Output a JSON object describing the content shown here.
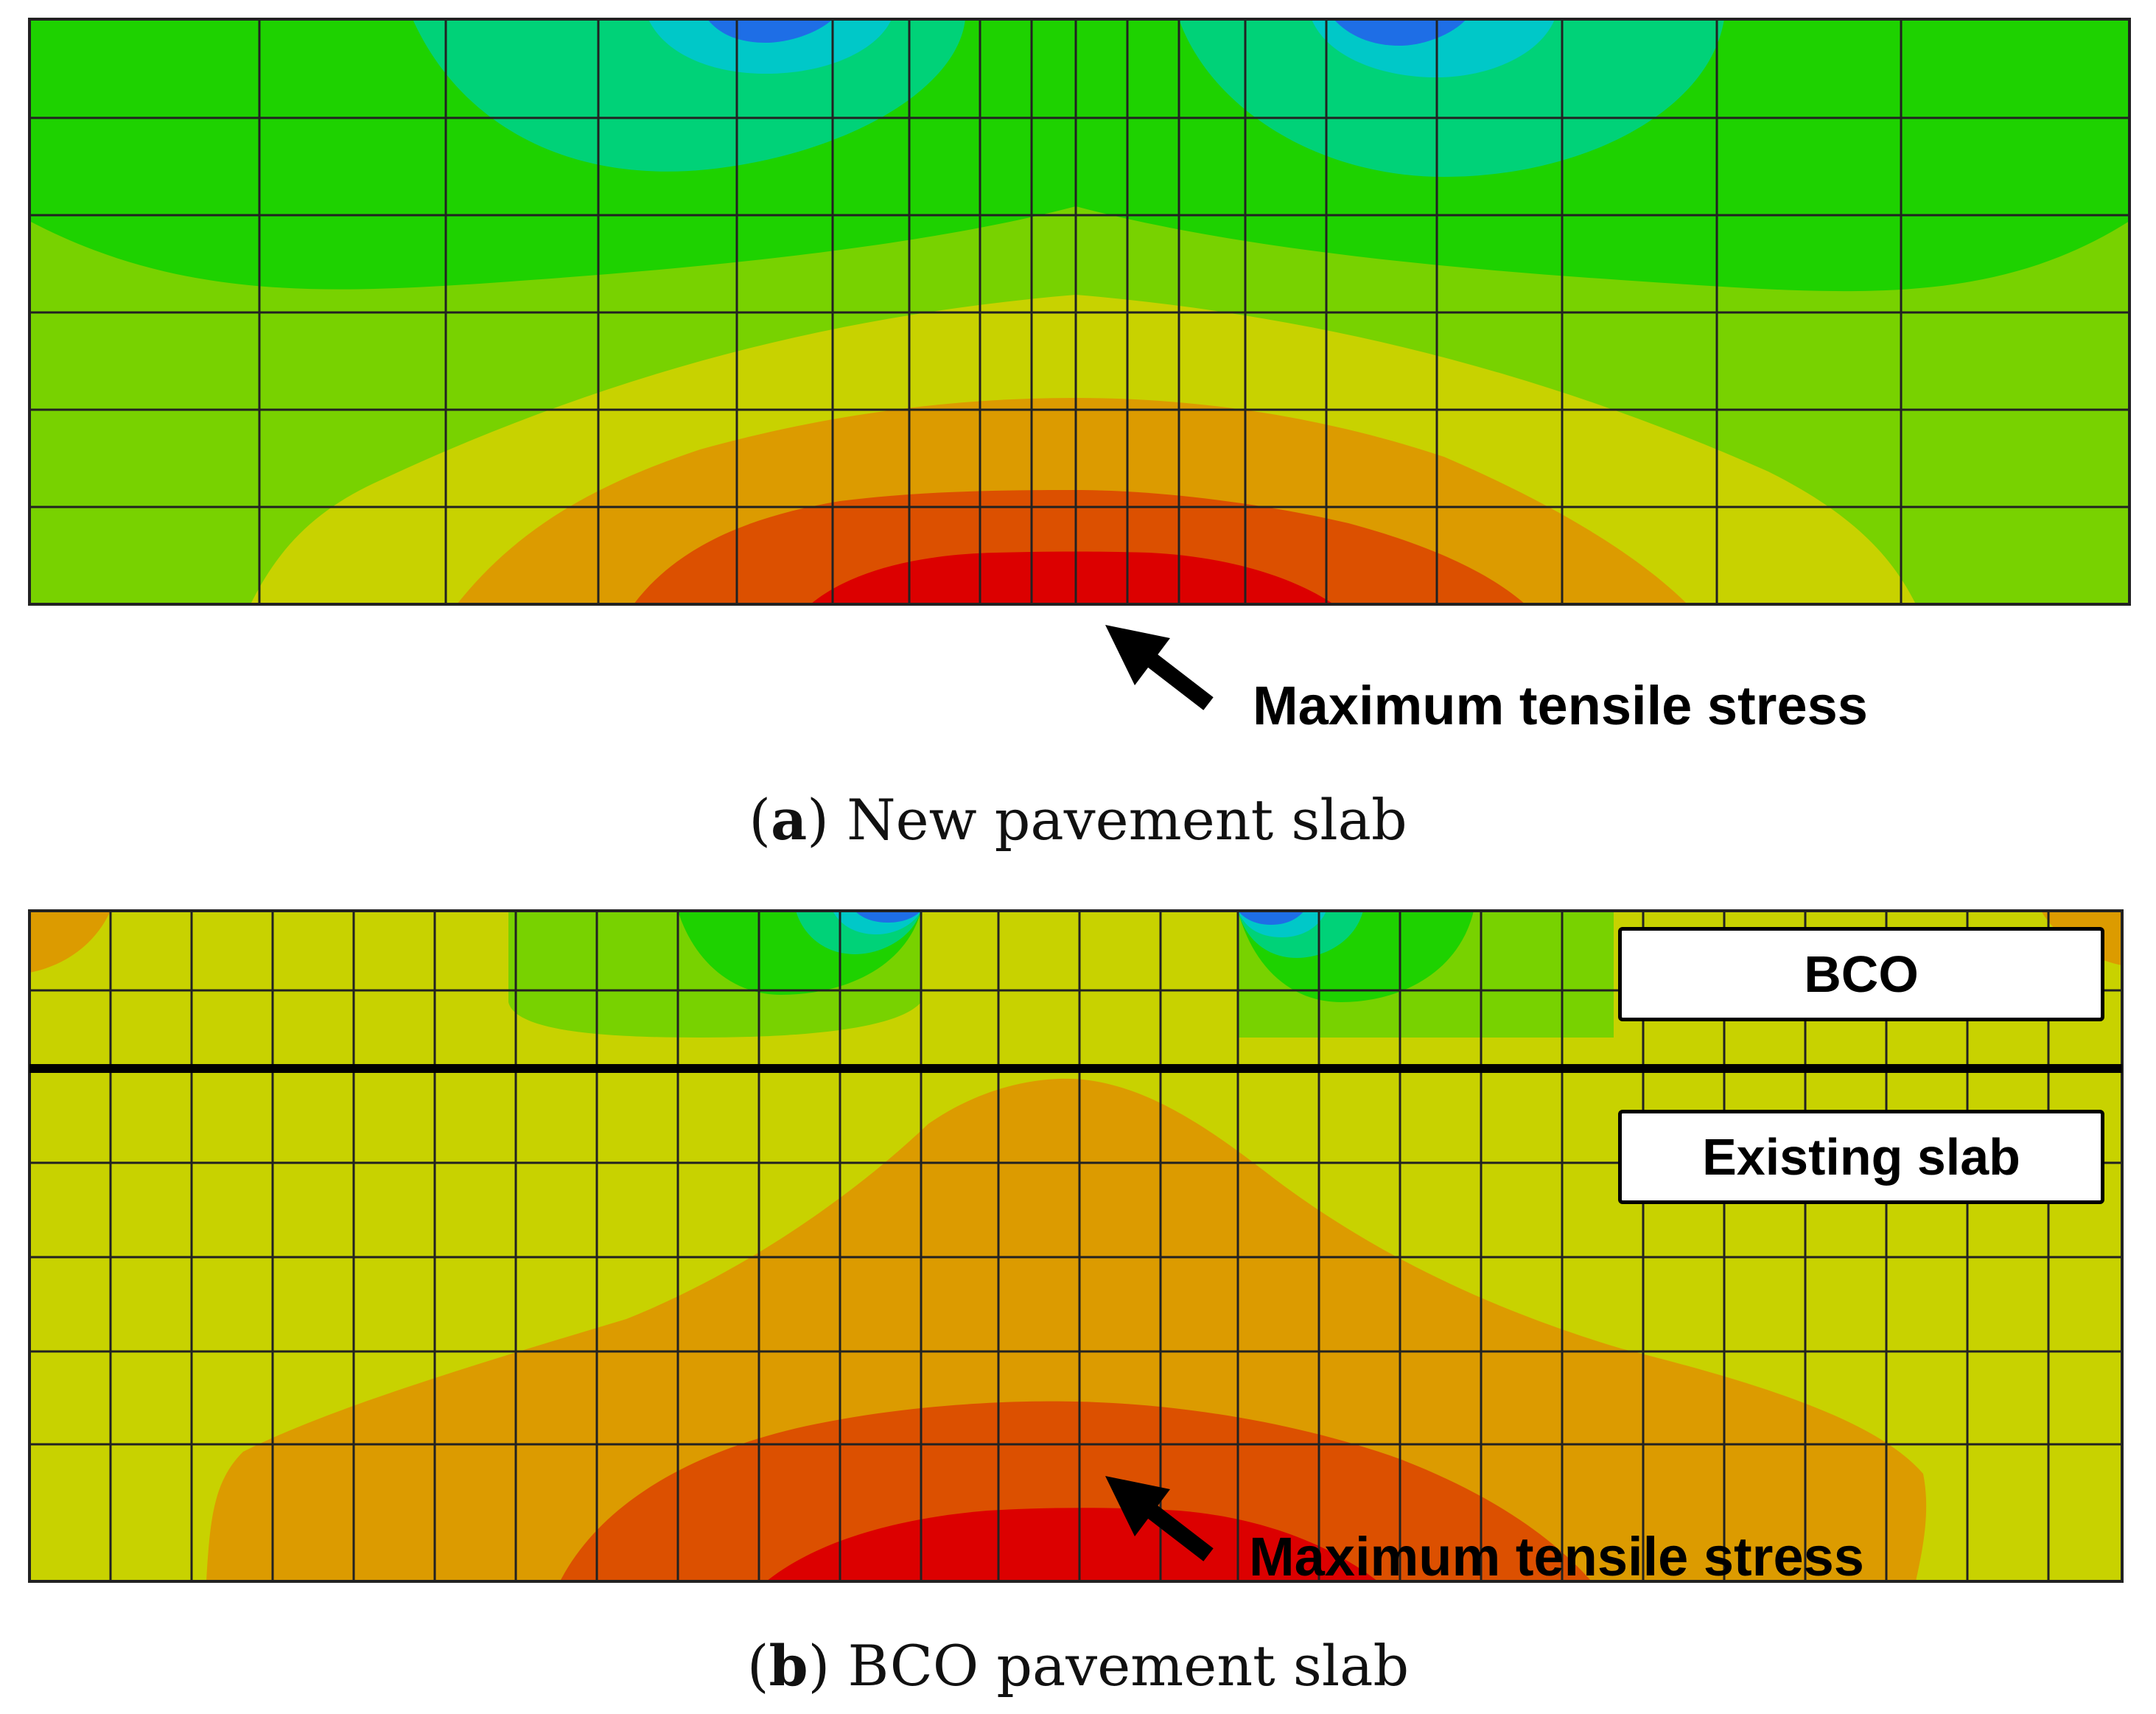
{
  "figure": {
    "panel_a": {
      "caption_label": "a",
      "caption_text": "New pavement slab",
      "annotation": "Maximum tensile stress"
    },
    "panel_b": {
      "caption_label": "b",
      "caption_text": "BCO pavement slab",
      "annotation": "Maximum tensile stress",
      "layers": [
        "BCO",
        "Existing slab"
      ]
    },
    "colors": {
      "stress_scale": [
        "#1e6ee6",
        "#00c8c8",
        "#00d278",
        "#1ed200",
        "#78d200",
        "#c8d200",
        "#dc9b00",
        "#dc5000",
        "#dc0000"
      ],
      "mesh": "#222222",
      "interface": "#000000"
    }
  }
}
